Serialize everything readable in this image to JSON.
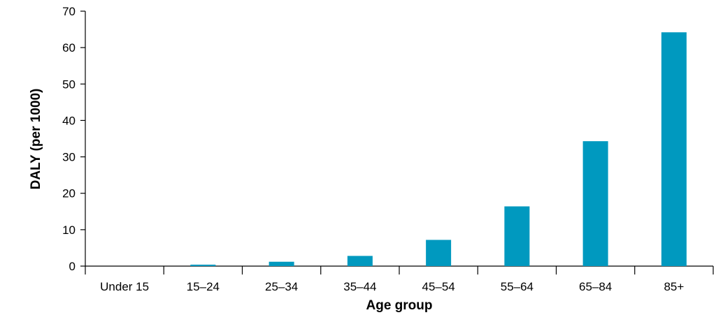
{
  "chart_data": {
    "type": "bar",
    "title": "",
    "xlabel": "Age group",
    "ylabel": "DALY (per 1000)",
    "categories": [
      "Under 15",
      "15–24",
      "25–34",
      "35–44",
      "45–54",
      "55–64",
      "65–84",
      "85+"
    ],
    "values": [
      0,
      0.4,
      1.2,
      2.8,
      7.2,
      16.4,
      34.3,
      64.2
    ],
    "ylim": [
      0,
      70
    ],
    "yticks": [
      0,
      10,
      20,
      30,
      40,
      50,
      60,
      70
    ],
    "grid": false,
    "legend": "none",
    "bar_color": "#0099bf"
  }
}
